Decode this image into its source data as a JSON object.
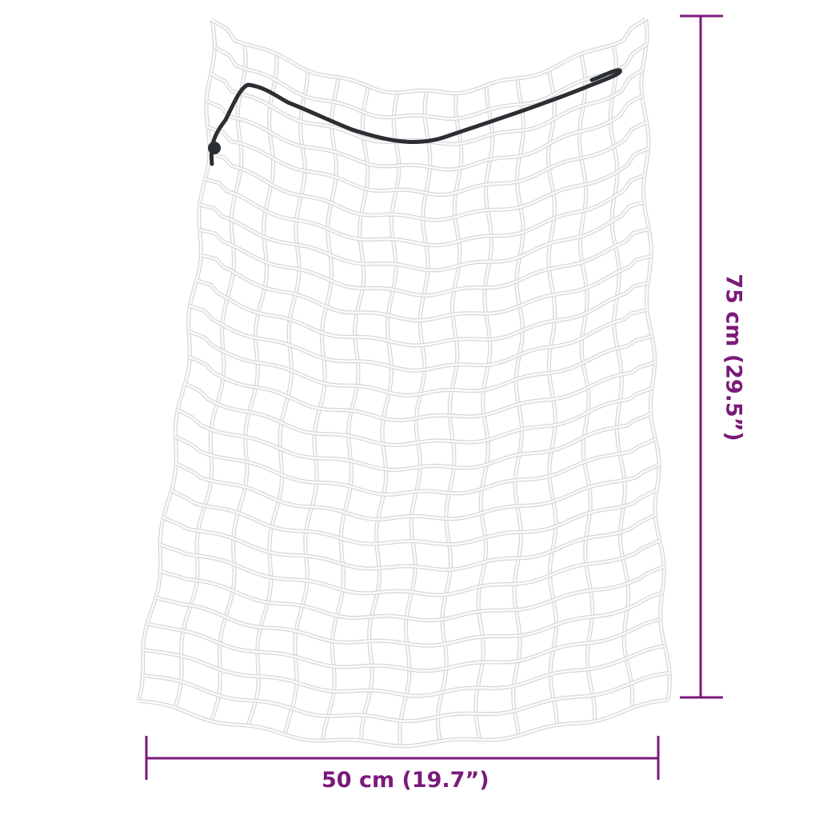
{
  "product": "hay net",
  "dimensions": {
    "width_label": "50 cm (19.7”)",
    "height_label": "75 cm (29.5”)"
  },
  "colors": {
    "dimension_line": "#7b1a7b",
    "net": "#f7f7f7",
    "drawstring": "#2b2f33"
  }
}
